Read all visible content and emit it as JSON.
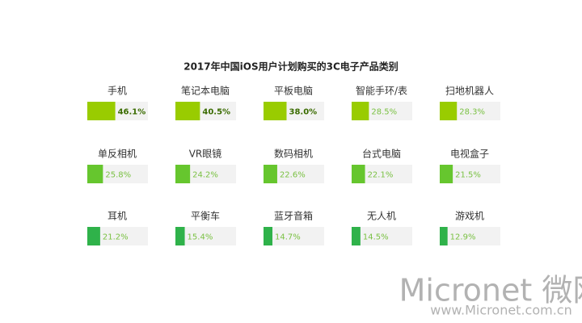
{
  "chart_data": {
    "type": "bar",
    "title": "2017年中国iOS用户计划购买的3C电子产品类别",
    "categories": [
      "手机",
      "笔记本电脑",
      "平板电脑",
      "智能手环/表",
      "扫地机器人",
      "单反相机",
      "VR眼镜",
      "数码相机",
      "台式电脑",
      "电视盒子",
      "耳机",
      "平衡车",
      "蓝牙音箱",
      "无人机",
      "游戏机"
    ],
    "values": [
      46.1,
      40.5,
      38.0,
      28.5,
      28.3,
      25.8,
      24.2,
      22.6,
      22.1,
      21.5,
      21.2,
      15.4,
      14.7,
      14.5,
      12.9
    ],
    "value_labels": [
      "46.1%",
      "40.5%",
      "38.0%",
      "28.5%",
      "28.3%",
      "25.8%",
      "24.2%",
      "22.6%",
      "22.1%",
      "21.5%",
      "21.2%",
      "15.4%",
      "14.7%",
      "14.5%",
      "12.9%"
    ],
    "colors": [
      "#99cc00",
      "#99cc00",
      "#99cc00",
      "#99cc00",
      "#99cc00",
      "#66c62e",
      "#66c62e",
      "#66c62e",
      "#66c62e",
      "#66c62e",
      "#2fb24a",
      "#2fb24a",
      "#2fb24a",
      "#2fb24a",
      "#2fb24a"
    ],
    "xlim": [
      0,
      100
    ]
  },
  "watermark": {
    "brand": "Micronet 微网",
    "url": "www.Micronet.com.cn"
  }
}
